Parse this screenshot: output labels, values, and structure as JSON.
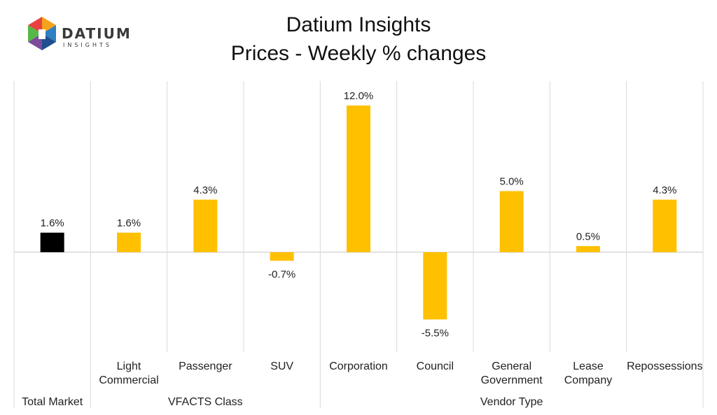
{
  "logo": {
    "word": "DATIUM",
    "sub": "INSIGHTS",
    "colors": {
      "red": "#e8423f",
      "orange": "#f7a21b",
      "green": "#55b848",
      "blue": "#2f7fc1",
      "darkblue": "#1f4f8f",
      "purple": "#7a4c9a",
      "text": "#3a3a3a"
    }
  },
  "colors": {
    "total": "#000000",
    "bar": "#ffc000",
    "grid": "#d9d9d9",
    "text": "#222222"
  },
  "chart_data": {
    "type": "bar",
    "title": "Datium Insights",
    "subtitle": "Prices - Weekly % changes",
    "categories": [
      [
        "Total Market"
      ],
      [
        "Light",
        "Commercial"
      ],
      [
        "Passenger"
      ],
      [
        "SUV"
      ],
      [
        "Corporation"
      ],
      [
        "Council"
      ],
      [
        "General",
        "Government"
      ],
      [
        "Lease",
        "Company"
      ],
      [
        "Repossessions"
      ]
    ],
    "values": [
      1.6,
      1.6,
      4.3,
      -0.7,
      12.0,
      -5.5,
      5.0,
      0.5,
      4.3
    ],
    "data_labels": [
      "1.6%",
      "1.6%",
      "4.3%",
      "-0.7%",
      "12.0%",
      "-5.5%",
      "5.0%",
      "0.5%",
      "4.3%"
    ],
    "groups": [
      {
        "label": "Total Market",
        "start": 0,
        "end": 0
      },
      {
        "label": "VFACTS Class",
        "start": 1,
        "end": 3
      },
      {
        "label": "Vendor Type",
        "start": 4,
        "end": 8
      }
    ],
    "ylim": [
      -8,
      14
    ],
    "xlabel": "",
    "ylabel": ""
  }
}
